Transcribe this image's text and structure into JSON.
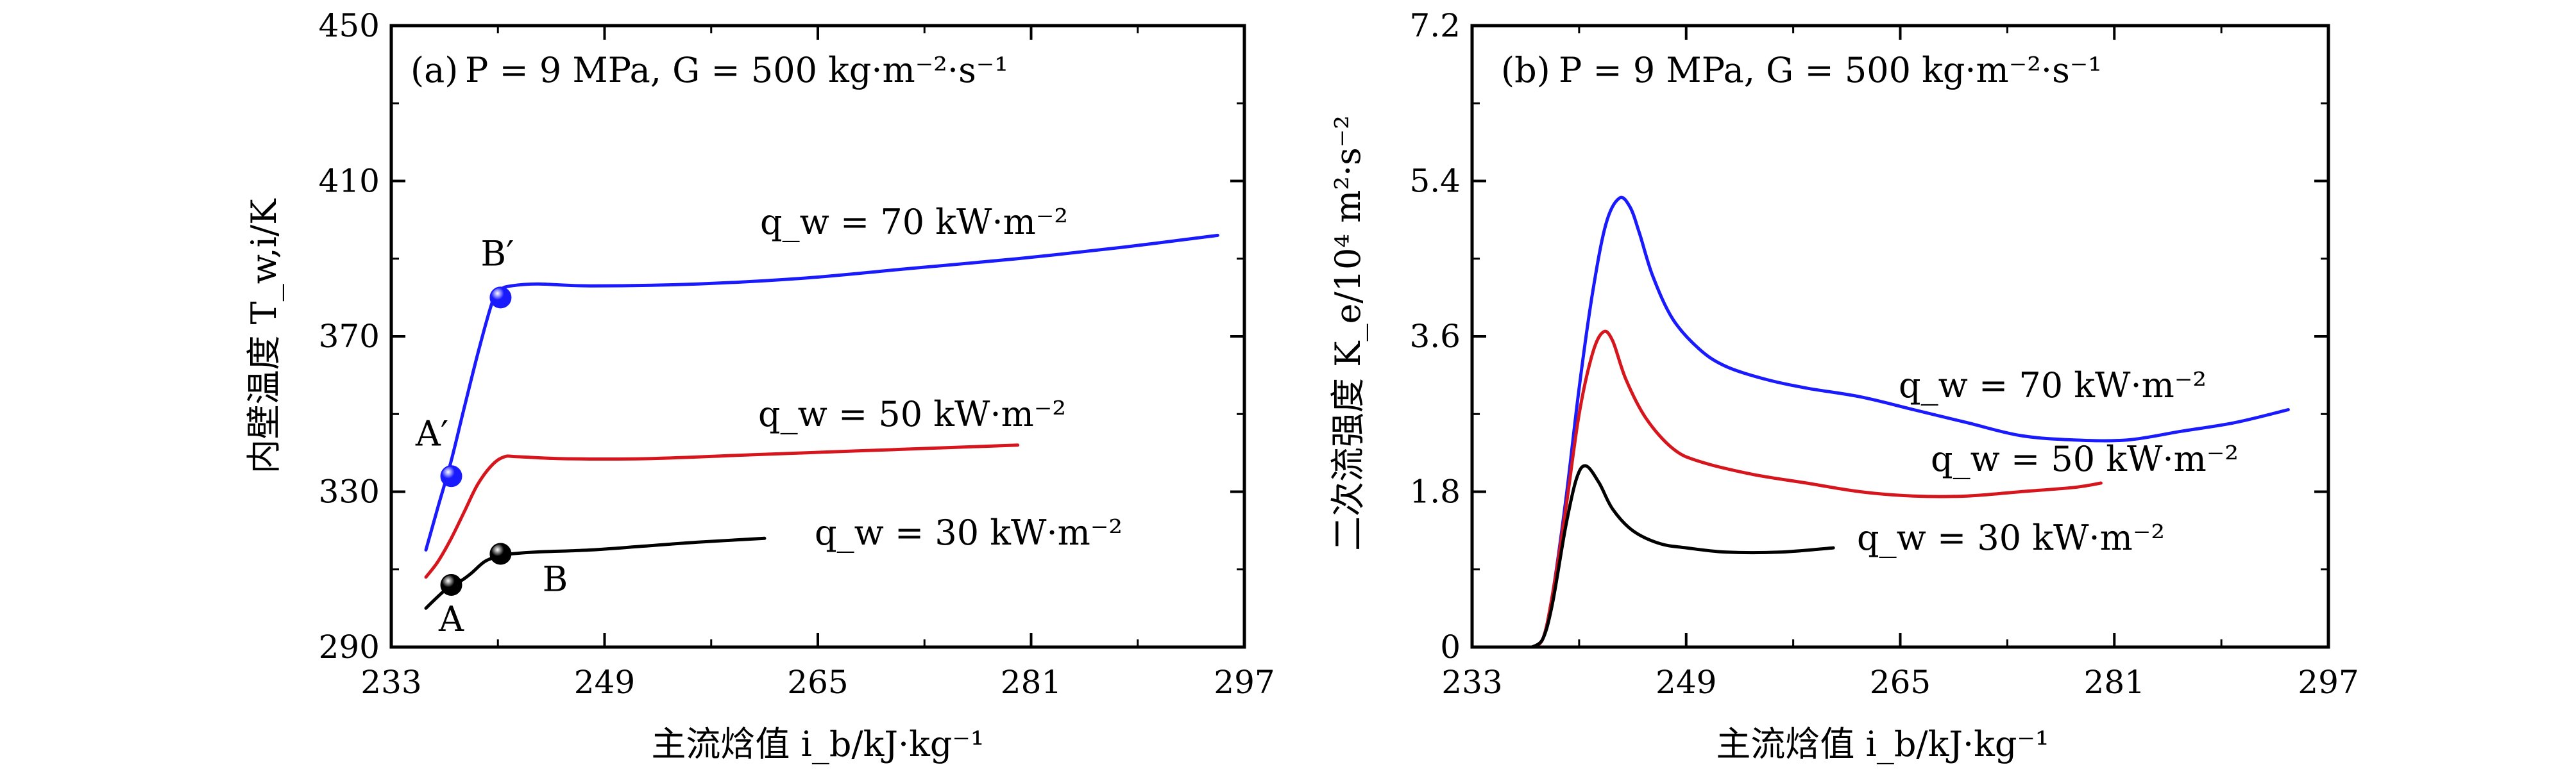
{
  "colors": {
    "blue": "#1a1aff",
    "red": "#d6151c",
    "black": "#000000"
  },
  "chart_data": [
    {
      "type": "line",
      "panel_label": "(a)",
      "condition_text": "P = 9 MPa, G = 500 kg·m⁻²·s⁻¹",
      "xlabel": "主流焓值 i_b/kJ·kg⁻¹",
      "ylabel": "内壁温度 T_w,i/K",
      "xlim": [
        233,
        297
      ],
      "ylim": [
        290,
        450
      ],
      "xticks": [
        "233",
        "249",
        "265",
        "281",
        "297"
      ],
      "yticks": [
        "290",
        "330",
        "370",
        "410",
        "450"
      ],
      "series": [
        {
          "name": "q_w = 70 kW·m⁻²",
          "color": "#1a1aff",
          "x": [
            235.6,
            236.5,
            237.5,
            238.5,
            239.6,
            240.6,
            241.2,
            242.0,
            244.0,
            248.0,
            256.0,
            264.0,
            272.0,
            280.0,
            288.0,
            295.0
          ],
          "y": [
            315,
            326,
            338,
            352,
            367,
            379,
            382,
            383,
            383.5,
            383,
            383.5,
            385,
            387.5,
            390,
            393,
            396
          ]
        },
        {
          "name": "q_w = 50 kW·m⁻²",
          "color": "#d6151c",
          "x": [
            235.6,
            236.5,
            237.5,
            238.5,
            239.5,
            240.6,
            241.5,
            242.5,
            246.0,
            252.0,
            260.0,
            268.0,
            276.0,
            280.0
          ],
          "y": [
            308,
            312,
            318,
            325,
            332,
            337,
            339,
            339,
            338.5,
            338.5,
            339.5,
            340.5,
            341.5,
            342
          ]
        },
        {
          "name": "q_w = 30 kW·m⁻²",
          "color": "#000000",
          "x": [
            235.6,
            236.5,
            237.5,
            238.2,
            239.0,
            240.0,
            241.1,
            242.0,
            244.0,
            248.0,
            252.0,
            256.0,
            261.0
          ],
          "y": [
            300,
            303,
            306,
            307,
            309,
            312,
            313.5,
            314,
            314.5,
            315,
            316,
            317,
            318
          ]
        }
      ],
      "points": [
        {
          "label": "A",
          "x": 237.5,
          "y": 306,
          "color": "#000000"
        },
        {
          "label": "B",
          "x": 241.2,
          "y": 314,
          "color": "#000000"
        },
        {
          "label": "A′",
          "x": 237.5,
          "y": 334,
          "color": "#1a1aff"
        },
        {
          "label": "B′",
          "x": 241.2,
          "y": 380,
          "color": "#1a1aff"
        }
      ]
    },
    {
      "type": "line",
      "panel_label": "(b)",
      "condition_text": "P = 9 MPa, G = 500 kg·m⁻²·s⁻¹",
      "xlabel": "主流焓值 i_b/kJ·kg⁻¹",
      "ylabel": "二次流强度 K_e/10⁴ m²·s⁻²",
      "xlim": [
        233,
        297
      ],
      "ylim": [
        0,
        7.2
      ],
      "xticks": [
        "233",
        "249",
        "265",
        "281",
        "297"
      ],
      "yticks": [
        "0",
        "1.8",
        "3.6",
        "5.4",
        "7.2"
      ],
      "series": [
        {
          "name": "q_w = 70 kW·m⁻²",
          "color": "#1a1aff",
          "x": [
            237.5,
            238.3,
            239.0,
            240.0,
            241.0,
            242.0,
            243.0,
            244.0,
            244.8,
            245.5,
            246.5,
            248.0,
            250.0,
            252.0,
            255.0,
            258.0,
            262.0,
            266.0,
            270.0,
            274.0,
            278.0,
            282.0,
            286.0,
            290.0,
            294.0
          ],
          "y": [
            0,
            0.1,
            0.6,
            1.7,
            3.0,
            4.1,
            4.9,
            5.2,
            5.1,
            4.8,
            4.3,
            3.8,
            3.45,
            3.25,
            3.1,
            3.0,
            2.9,
            2.75,
            2.6,
            2.45,
            2.4,
            2.4,
            2.5,
            2.6,
            2.75
          ]
        },
        {
          "name": "q_w = 50 kW·m⁻²",
          "color": "#d6151c",
          "x": [
            237.5,
            238.3,
            239.0,
            240.0,
            241.0,
            242.0,
            242.8,
            243.5,
            244.5,
            246.0,
            248.0,
            250.0,
            254.0,
            258.0,
            262.0,
            266.0,
            270.0,
            274.0,
            278.0,
            280.0
          ],
          "y": [
            0,
            0.1,
            0.6,
            1.6,
            2.7,
            3.4,
            3.65,
            3.55,
            3.1,
            2.65,
            2.3,
            2.15,
            2.0,
            1.9,
            1.8,
            1.75,
            1.75,
            1.8,
            1.85,
            1.9
          ]
        },
        {
          "name": "q_w = 30 kW·m⁻²",
          "color": "#000000",
          "x": [
            237.5,
            238.3,
            239.0,
            240.0,
            240.8,
            241.5,
            242.5,
            243.5,
            245.0,
            247.0,
            249.0,
            252.0,
            256.0,
            260.0
          ],
          "y": [
            0,
            0.1,
            0.5,
            1.4,
            1.95,
            2.1,
            1.9,
            1.6,
            1.35,
            1.2,
            1.15,
            1.1,
            1.1,
            1.15
          ]
        }
      ]
    }
  ]
}
